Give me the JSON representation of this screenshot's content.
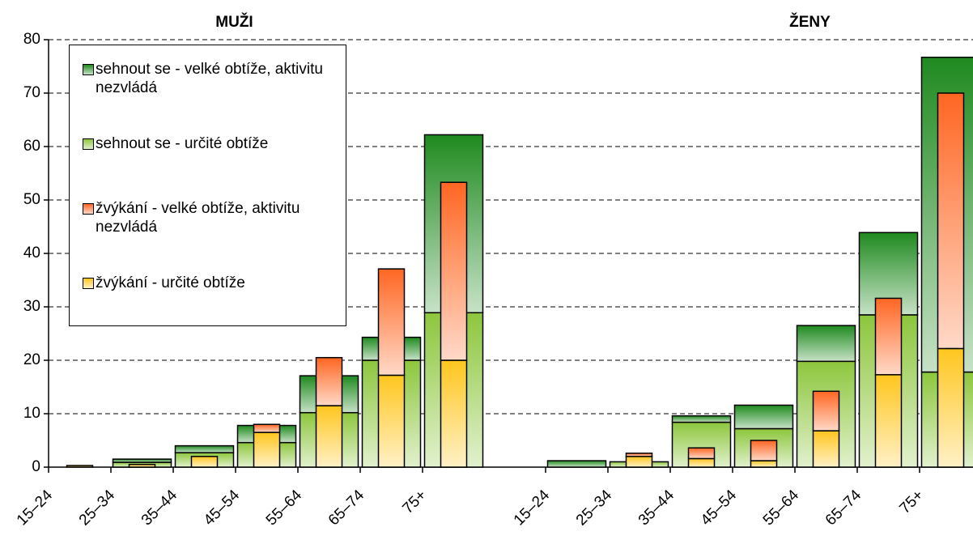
{
  "chart_data": [
    {
      "type": "bar",
      "title": "MUŽI",
      "categories": [
        "15–24",
        "25–34",
        "35–44",
        "45–54",
        "55–64",
        "65–74",
        "75+"
      ],
      "ylim": [
        0,
        80
      ],
      "yticks": [
        0,
        10,
        20,
        30,
        40,
        50,
        60,
        70,
        80
      ],
      "grid": true,
      "legend": "top-left",
      "series": [
        {
          "name": "sehnout se - velké obtíže, aktivitu nezvládá",
          "color": "#1f8a1f",
          "values": [
            0,
            0.6,
            1.3,
            3.2,
            6.9,
            4.3,
            33.3
          ]
        },
        {
          "name": "sehnout se - určité obtíže",
          "color": "#8cc63c",
          "values": [
            0,
            0.9,
            2.7,
            4.6,
            10.2,
            20.0,
            28.9
          ]
        },
        {
          "name": "žvýkání - velké obtíže, aktivitu nezvládá",
          "color": "#ff6622",
          "values": [
            0,
            0,
            0,
            1.5,
            9.0,
            19.9,
            33.3
          ]
        },
        {
          "name": "žvýkání - určité obtíže",
          "color": "#ffc61e",
          "values": [
            0.3,
            0.5,
            2.0,
            6.5,
            11.5,
            17.2,
            20.0
          ]
        }
      ]
    },
    {
      "type": "bar",
      "title": "ŽENY",
      "categories": [
        "15–24",
        "25–34",
        "35–44",
        "45–54",
        "55–64",
        "65–74",
        "75+"
      ],
      "ylim": [
        0,
        80
      ],
      "series": [
        {
          "name": "sehnout se - velké obtíže, aktivitu nezvládá",
          "color": "#1f8a1f",
          "values": [
            1.2,
            0,
            1.2,
            4.4,
            6.7,
            15.4,
            58.9
          ]
        },
        {
          "name": "sehnout se - určité obtíže",
          "color": "#8cc63c",
          "values": [
            0,
            1.0,
            8.4,
            7.2,
            19.8,
            28.5,
            17.8
          ]
        },
        {
          "name": "žvýkání - velké obtíže, aktivitu nezvládá",
          "color": "#ff6622",
          "values": [
            0,
            0.6,
            2.0,
            3.8,
            7.4,
            14.3,
            47.8
          ]
        },
        {
          "name": "žvýkání - určité obtíže",
          "color": "#ffc61e",
          "values": [
            0,
            2.0,
            1.6,
            1.2,
            6.8,
            17.3,
            22.2
          ]
        }
      ]
    }
  ]
}
